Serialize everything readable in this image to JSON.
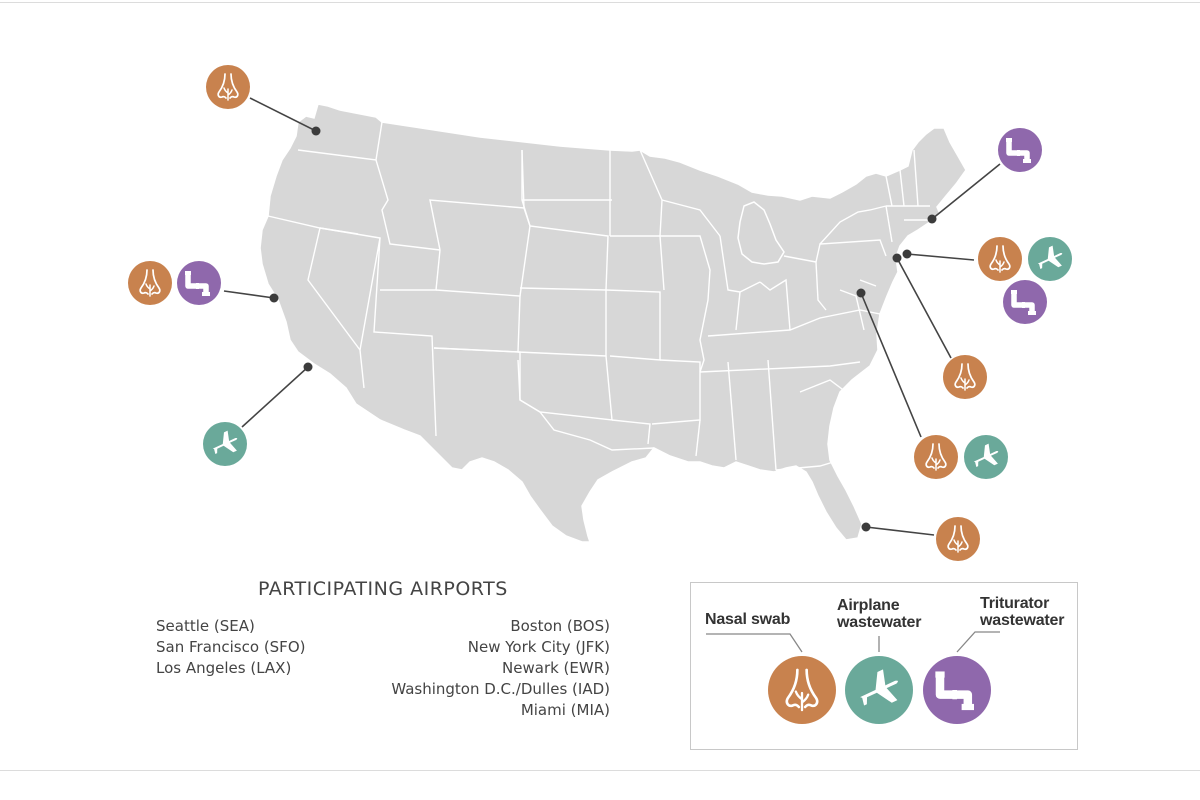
{
  "airports_title": "PARTICIPATING AIRPORTS",
  "airports_left": [
    "Seattle (SEA)",
    "San Francisco (SFO)",
    "Los Angeles (LAX)"
  ],
  "airports_right": [
    "Boston (BOS)",
    "New York City (JFK)",
    "Newark (EWR)",
    "Washington D.C./Dulles (IAD)",
    "Miami (MIA)"
  ],
  "legend": {
    "nasal": "Nasal swab",
    "airplane": "Airplane\nwastewater",
    "triturator": "Triturator\nwastewater"
  },
  "colors": {
    "nasal": "#c8824e",
    "airplane": "#6aa99a",
    "triturator": "#8f68ac",
    "land": "#d7d7d7",
    "dot": "#3c3c3c"
  },
  "sites": [
    {
      "airport": "SEA",
      "samples": [
        "nasal"
      ]
    },
    {
      "airport": "SFO",
      "samples": [
        "nasal",
        "triturator"
      ]
    },
    {
      "airport": "LAX",
      "samples": [
        "airplane"
      ]
    },
    {
      "airport": "BOS",
      "samples": [
        "triturator"
      ]
    },
    {
      "airport": "JFK",
      "samples": [
        "nasal",
        "airplane",
        "triturator"
      ]
    },
    {
      "airport": "EWR",
      "samples": [
        "nasal"
      ]
    },
    {
      "airport": "IAD",
      "samples": [
        "nasal",
        "airplane"
      ]
    },
    {
      "airport": "MIA",
      "samples": [
        "nasal"
      ]
    }
  ]
}
